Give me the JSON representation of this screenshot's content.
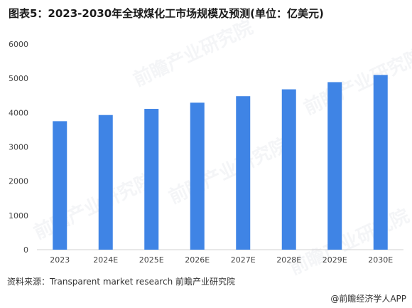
{
  "title": "图表5：2023-2030年全球煤化工市场规模及预测(单位：亿美元)",
  "source": "资料来源：Transparent market research 前瞻产业研究院",
  "brand": "@前瞻经济学人APP",
  "watermark": "前瞻产业研究院",
  "colors": {
    "bar": "#3f84e5",
    "axis": "#d0d0d0",
    "tick_text": "#444444"
  },
  "chart_data": {
    "type": "bar",
    "title": "图表5：2023-2030年全球煤化工市场规模及预测(单位：亿美元)",
    "categories": [
      "2023",
      "2024E",
      "2025E",
      "2026E",
      "2027E",
      "2028E",
      "2029E",
      "2030E"
    ],
    "values": [
      3750,
      3930,
      4110,
      4290,
      4480,
      4680,
      4890,
      5100
    ],
    "ylim": [
      0,
      6000
    ],
    "yticks": [
      0,
      1000,
      2000,
      3000,
      4000,
      5000,
      6000
    ],
    "grid": false,
    "legend": "none"
  }
}
